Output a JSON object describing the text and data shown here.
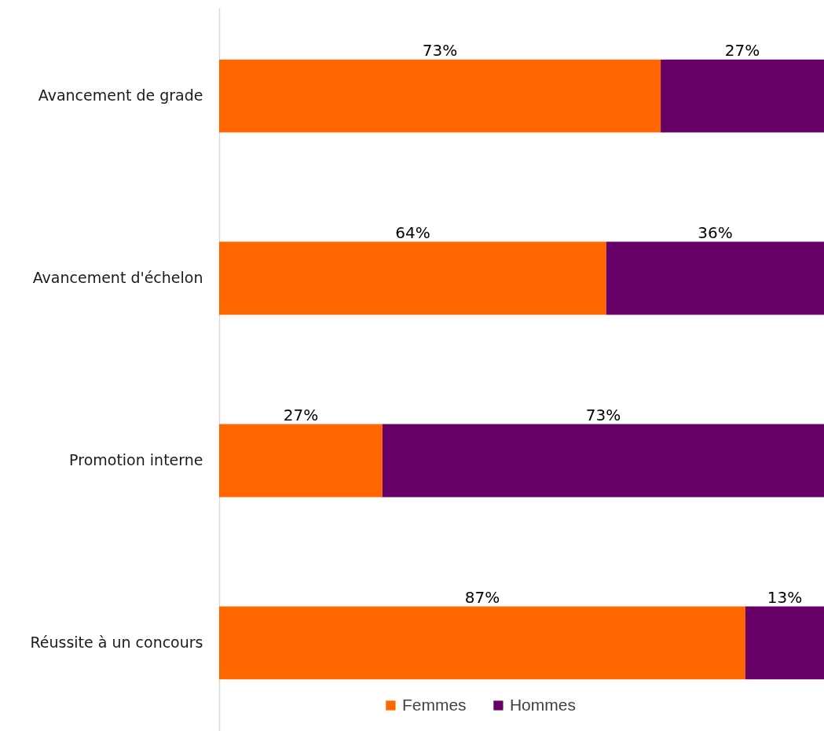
{
  "chart_data": {
    "type": "bar",
    "orientation": "horizontal",
    "stacked": true,
    "categories": [
      "Avancement de grade",
      "Avancement d'échelon",
      "Promotion interne",
      "Réussite à un concours"
    ],
    "series": [
      {
        "name": "Femmes",
        "color": "#ff6600",
        "values": [
          73,
          64,
          27,
          87
        ],
        "value_labels": [
          "73%",
          "64%",
          "27%",
          "87%"
        ]
      },
      {
        "name": "Hommes",
        "color": "#660066",
        "values": [
          27,
          36,
          73,
          13
        ],
        "value_labels": [
          "27%",
          "36%",
          "73%",
          "13%"
        ]
      }
    ],
    "xlim": [
      0,
      100
    ],
    "tick_labels": "y",
    "legend": "bottom"
  }
}
